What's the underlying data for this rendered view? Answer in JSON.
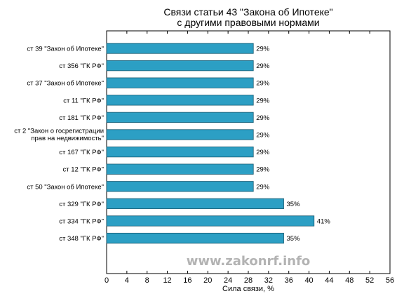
{
  "chart_data": {
    "type": "bar",
    "orientation": "horizontal",
    "title": [
      "Связи статьи 43 \"Закона об Ипотеке\"",
      "с другими правовыми нормами"
    ],
    "xlabel": "Сила связи, %",
    "xlim": [
      0,
      56
    ],
    "xticks": [
      0,
      4,
      8,
      12,
      16,
      20,
      24,
      28,
      32,
      36,
      40,
      44,
      48,
      52,
      56
    ],
    "bar_color": "#2c9fc4",
    "bar_edge_color": "#1a5a70",
    "grid": false,
    "categories": [
      [
        "ст 39 \"Закон об Ипотеке\""
      ],
      [
        "ст 356 \"ГК РФ\""
      ],
      [
        "ст 37 \"Закон об Ипотеке\""
      ],
      [
        "ст 11 \"ГК РФ\""
      ],
      [
        "ст 181 \"ГК РФ\""
      ],
      [
        "ст 2 \"Закон о госрегистрации",
        "прав на недвижимость\""
      ],
      [
        "ст 167 \"ГК РФ\""
      ],
      [
        "ст 12 \"ГК РФ\""
      ],
      [
        "ст 50 \"Закон об Ипотеке\""
      ],
      [
        "ст 329 \"ГК РФ\""
      ],
      [
        "ст 334 \"ГК РФ\""
      ],
      [
        "ст 348 \"ГК РФ\""
      ]
    ],
    "values": [
      29,
      29,
      29,
      29,
      29,
      29,
      29,
      29,
      29,
      35,
      41,
      35
    ],
    "value_labels": [
      "29%",
      "29%",
      "29%",
      "29%",
      "29%",
      "29%",
      "29%",
      "29%",
      "29%",
      "35%",
      "41%",
      "35%"
    ]
  },
  "watermark": "www.zakonrf.info"
}
